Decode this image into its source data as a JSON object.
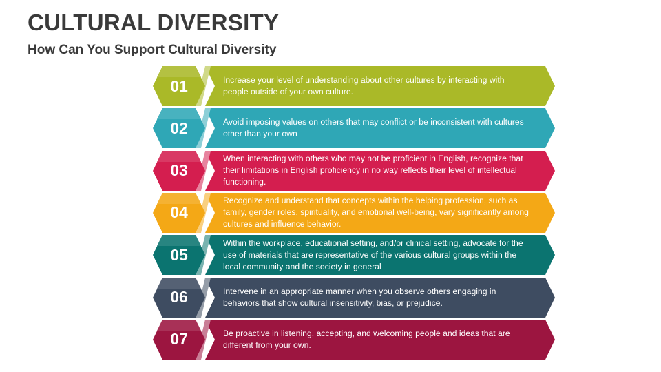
{
  "header": {
    "title": "CULTURAL DIVERSITY",
    "subtitle": "How Can You Support Cultural Diversity"
  },
  "steps": [
    {
      "number": "01",
      "color": "#aab928",
      "text": "Increase your level of understanding about other cultures by interacting with people outside of your own culture."
    },
    {
      "number": "02",
      "color": "#2fa7b6",
      "text": "Avoid imposing values on others that may conflict or be inconsistent with cultures other than your own"
    },
    {
      "number": "03",
      "color": "#d41e4f",
      "text": "When interacting with others who may not be proficient in English, recognize that their limitations in English proficiency in no way reflects their level of intellectual functioning."
    },
    {
      "number": "04",
      "color": "#f4a816",
      "text": "Recognize and understand that concepts within the helping profession, such as family, gender roles, spirituality, and emotional well-being, vary significantly among cultures and influence behavior."
    },
    {
      "number": "05",
      "color": "#0b7470",
      "text": "Within the workplace, educational setting, and/or clinical setting, advocate for the use of materials that are representative of the various cultural groups within the local community and the society in general"
    },
    {
      "number": "06",
      "color": "#3e4c61",
      "text": "Intervene in an appropriate manner when you observe others engaging in behaviors that show cultural insensitivity, bias, or prejudice."
    },
    {
      "number": "07",
      "color": "#9c1540",
      "text": "Be proactive in listening, accepting, and welcoming people and ideas that are different from your own."
    }
  ]
}
